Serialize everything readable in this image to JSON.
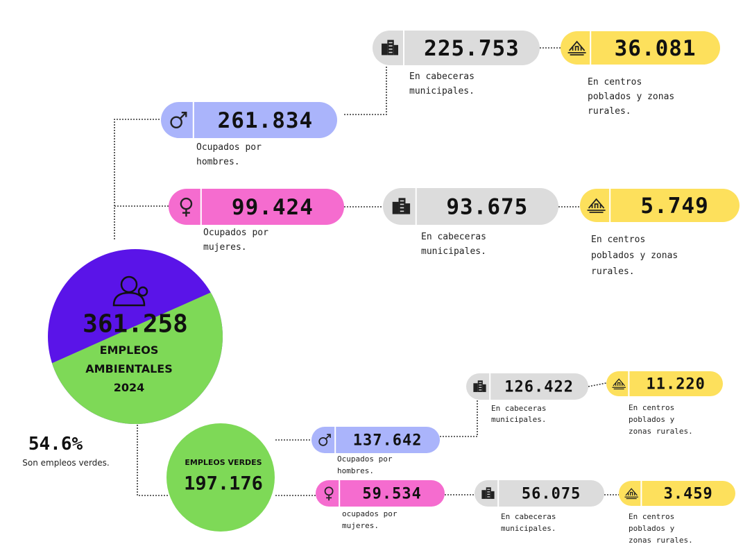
{
  "total": {
    "value": "361.258",
    "label": [
      "EMPLEOS",
      "AMBIENTALES",
      "2024"
    ]
  },
  "green_share": {
    "value": "54.6%",
    "caption": "Son empleos verdes."
  },
  "green": {
    "title": "EMPLEOS VERDES",
    "value": "197.176"
  },
  "nodes": [
    {
      "value": "225.753",
      "caption": [
        "En cabeceras",
        "municipales."
      ]
    },
    {
      "value": "36.081",
      "caption": [
        "En centros",
        "poblados y zonas",
        "rurales."
      ]
    },
    {
      "value": "261.834",
      "caption": [
        "Ocupados por",
        "hombres."
      ]
    },
    {
      "value": "99.424",
      "caption": [
        "Ocupados por",
        "mujeres."
      ]
    },
    {
      "value": "93.675",
      "caption": [
        "En cabeceras",
        "municipales."
      ]
    },
    {
      "value": "5.749",
      "caption": [
        "En centros",
        "poblados y zonas",
        "rurales."
      ]
    },
    {
      "value": "126.422",
      "caption": [
        "En cabeceras",
        "municipales."
      ]
    },
    {
      "value": "11.220",
      "caption": [
        "En centros",
        "poblados y",
        "zonas rurales."
      ]
    },
    {
      "value": "137.642",
      "caption": [
        "Ocupados por",
        "hombres."
      ]
    },
    {
      "value": "59.534",
      "caption": [
        "ocupados por",
        "mujeres."
      ]
    },
    {
      "value": "56.075",
      "caption": [
        "En cabeceras",
        "municipales."
      ]
    },
    {
      "value": "3.459",
      "caption": [
        "En centros",
        "poblados y",
        "zonas rurales."
      ]
    }
  ]
}
